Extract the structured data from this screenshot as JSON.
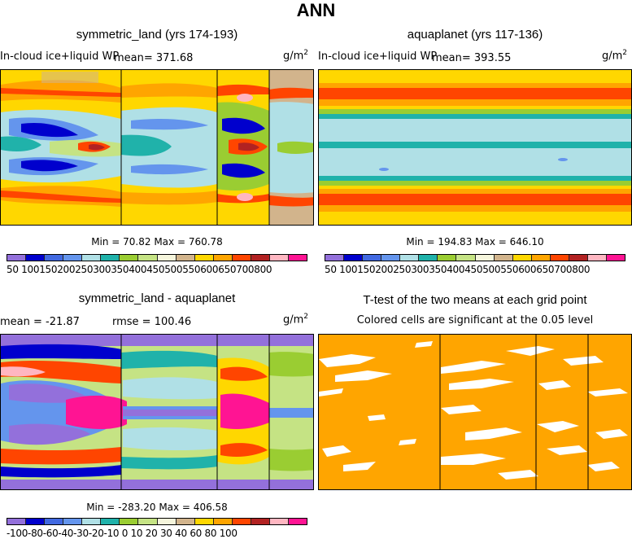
{
  "main_title": "ANN",
  "chart_data": [
    {
      "type": "heatmap",
      "title": "symmetric_land (yrs 174-193)",
      "field_label": "In-cloud ice+liquid WP",
      "mean_label": "mean= 371.68",
      "units_base": "g/m",
      "units_exp": "2",
      "min_max": "Min =  70.82 Max = 760.78",
      "colorbar_labels": "50 100150200250300350400450500550600650700800",
      "levels": [
        50,
        100,
        150,
        200,
        250,
        300,
        350,
        400,
        450,
        500,
        550,
        600,
        650,
        700,
        800
      ]
    },
    {
      "type": "heatmap",
      "title": "aquaplanet (yrs 117-136)",
      "field_label": "In-cloud ice+liquid WP",
      "mean_label": "mean= 393.55",
      "units_base": "g/m",
      "units_exp": "2",
      "min_max": "Min = 194.83 Max = 646.10",
      "colorbar_labels": "50 100150200250300350400450500550600650700800",
      "levels": [
        50,
        100,
        150,
        200,
        250,
        300,
        350,
        400,
        450,
        500,
        550,
        600,
        650,
        700,
        800
      ]
    },
    {
      "type": "heatmap",
      "title": "symmetric_land - aquaplanet",
      "mean_label": "mean = -21.87",
      "rmse_label": "rmse = 100.46",
      "units_base": "g/m",
      "units_exp": "2",
      "min_max": "Min = -283.20 Max = 406.58",
      "colorbar_labels": "-100-80-60-40-30-20-10  0  10  20  30  40  60  80 100",
      "levels": [
        -100,
        -80,
        -60,
        -40,
        -30,
        -20,
        -10,
        0,
        10,
        20,
        30,
        40,
        60,
        80,
        100
      ]
    },
    {
      "type": "heatmap",
      "title": "T-test of the two means at each grid point",
      "subtitle": "Colored cells are significant at the 0.05 level"
    }
  ],
  "colors": {
    "seq": [
      "#9370db",
      "#0000cd",
      "#4169e1",
      "#6495ed",
      "#b0e0e6",
      "#20b2aa",
      "#9acd32",
      "#c5e384",
      "#f5f5dc",
      "#d2b48c",
      "#ffd700",
      "#ffa500",
      "#ff4500",
      "#b22222",
      "#ffb6c1",
      "#ff1493"
    ],
    "diff": [
      "#9370db",
      "#0000cd",
      "#4169e1",
      "#6495ed",
      "#b0e0e6",
      "#20b2aa",
      "#9acd32",
      "#c5e384",
      "#f5f5dc",
      "#d2b48c",
      "#ffd700",
      "#ffa500",
      "#ff4500",
      "#b22222",
      "#ffb6c1",
      "#ff1493"
    ],
    "ttest": "#ffa500"
  }
}
